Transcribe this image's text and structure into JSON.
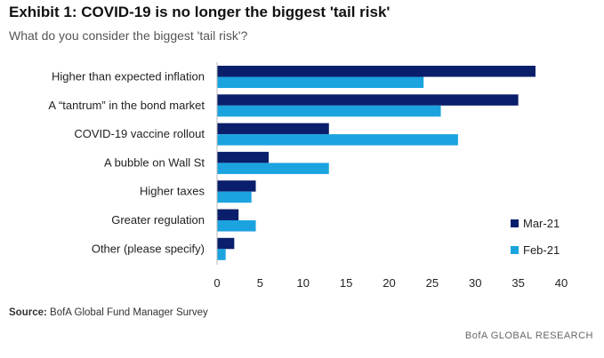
{
  "header": {
    "title": "Exhibit 1: COVID-19 is no longer the biggest 'tail risk'",
    "subtitle": "What do you consider the biggest 'tail risk'?"
  },
  "chart_data": {
    "type": "bar",
    "orientation": "horizontal",
    "categories": [
      "Higher than expected inflation",
      "A “tantrum” in the bond market",
      "COVID-19 vaccine rollout",
      "A bubble on Wall St",
      "Higher taxes",
      "Greater regulation",
      "Other (please specify)"
    ],
    "series": [
      {
        "name": "Mar-21",
        "color": "#0a1f6b",
        "values": [
          37,
          35,
          13,
          6,
          4.5,
          2.5,
          2
        ]
      },
      {
        "name": "Feb-21",
        "color": "#1ba3e0",
        "values": [
          24,
          26,
          28,
          13,
          4,
          4.5,
          1
        ]
      }
    ],
    "xlim": [
      0,
      40
    ],
    "xticks": [
      "0",
      "5",
      "10",
      "15",
      "20",
      "25",
      "30",
      "35",
      "40"
    ],
    "grid": false,
    "legend_position": "bottom-right"
  },
  "footer": {
    "source_label": "Source:",
    "source_text": "BofA Global Fund Manager Survey",
    "branding": "BofA GLOBAL RESEARCH"
  }
}
